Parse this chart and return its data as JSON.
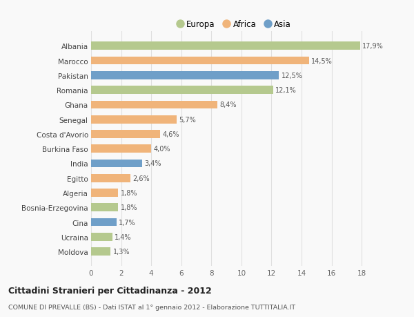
{
  "countries": [
    "Albania",
    "Marocco",
    "Pakistan",
    "Romania",
    "Ghana",
    "Senegal",
    "Costa d'Avorio",
    "Burkina Faso",
    "India",
    "Egitto",
    "Algeria",
    "Bosnia-Erzegovina",
    "Cina",
    "Ucraina",
    "Moldova"
  ],
  "values": [
    17.9,
    14.5,
    12.5,
    12.1,
    8.4,
    5.7,
    4.6,
    4.0,
    3.4,
    2.6,
    1.8,
    1.8,
    1.7,
    1.4,
    1.3
  ],
  "labels": [
    "17,9%",
    "14,5%",
    "12,5%",
    "12,1%",
    "8,4%",
    "5,7%",
    "4,6%",
    "4,0%",
    "3,4%",
    "2,6%",
    "1,8%",
    "1,8%",
    "1,7%",
    "1,4%",
    "1,3%"
  ],
  "continents": [
    "Europa",
    "Africa",
    "Asia",
    "Europa",
    "Africa",
    "Africa",
    "Africa",
    "Africa",
    "Asia",
    "Africa",
    "Africa",
    "Europa",
    "Asia",
    "Europa",
    "Europa"
  ],
  "colors": {
    "Europa": "#b5c98e",
    "Africa": "#f0b47a",
    "Asia": "#6f9fc8"
  },
  "title": "Cittadini Stranieri per Cittadinanza - 2012",
  "subtitle": "COMUNE DI PREVALLE (BS) - Dati ISTAT al 1° gennaio 2012 - Elaborazione TUTTITALIA.IT",
  "xlim": [
    0,
    19
  ],
  "xticks": [
    0,
    2,
    4,
    6,
    8,
    10,
    12,
    14,
    16,
    18
  ],
  "bg_color": "#f9f9f9",
  "grid_color": "#e0e0e0",
  "legend_labels": [
    "Europa",
    "Africa",
    "Asia"
  ]
}
